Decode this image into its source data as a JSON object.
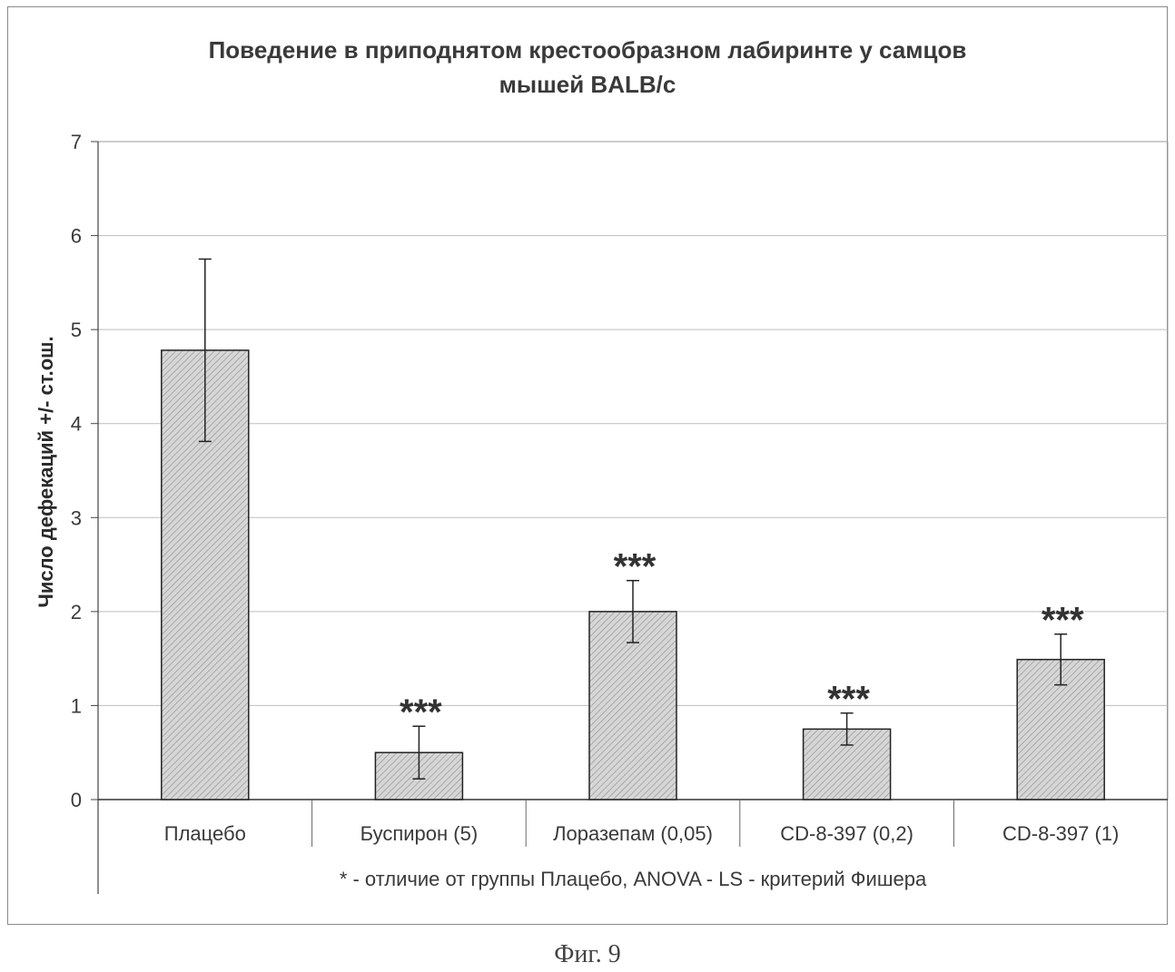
{
  "figure": {
    "caption": "Фиг. 9",
    "footnote": "* - отличие от группы Плацебо, ANOVA - LS - критерий Фишера"
  },
  "chart_data": {
    "type": "bar",
    "title_lines": [
      "Поведение в приподнятом крестообразном лабиринте у самцов",
      "мышей BALB/c"
    ],
    "xlabel": "",
    "ylabel": "Число дефекаций +/- ст.ош.",
    "ylim": [
      0,
      7
    ],
    "yticks": [
      0,
      1,
      2,
      3,
      4,
      5,
      6,
      7
    ],
    "grid": true,
    "categories": [
      "Плацебо",
      "Буспирон (5)",
      "Лоразепам (0,05)",
      "CD-8-397 (0,2)",
      "CD-8-397 (1)"
    ],
    "values": [
      4.78,
      0.5,
      2.0,
      0.75,
      1.49
    ],
    "errors": [
      0.97,
      0.28,
      0.33,
      0.17,
      0.27
    ],
    "annotations": [
      "",
      "***",
      "***",
      "***",
      "***"
    ],
    "colors": {
      "bar_fill": "#d6d6d6",
      "bar_hatch": "#9a9a9a",
      "bar_stroke": "#222222",
      "grid": "#bdbdbd",
      "text": "#3a3a3a"
    }
  }
}
